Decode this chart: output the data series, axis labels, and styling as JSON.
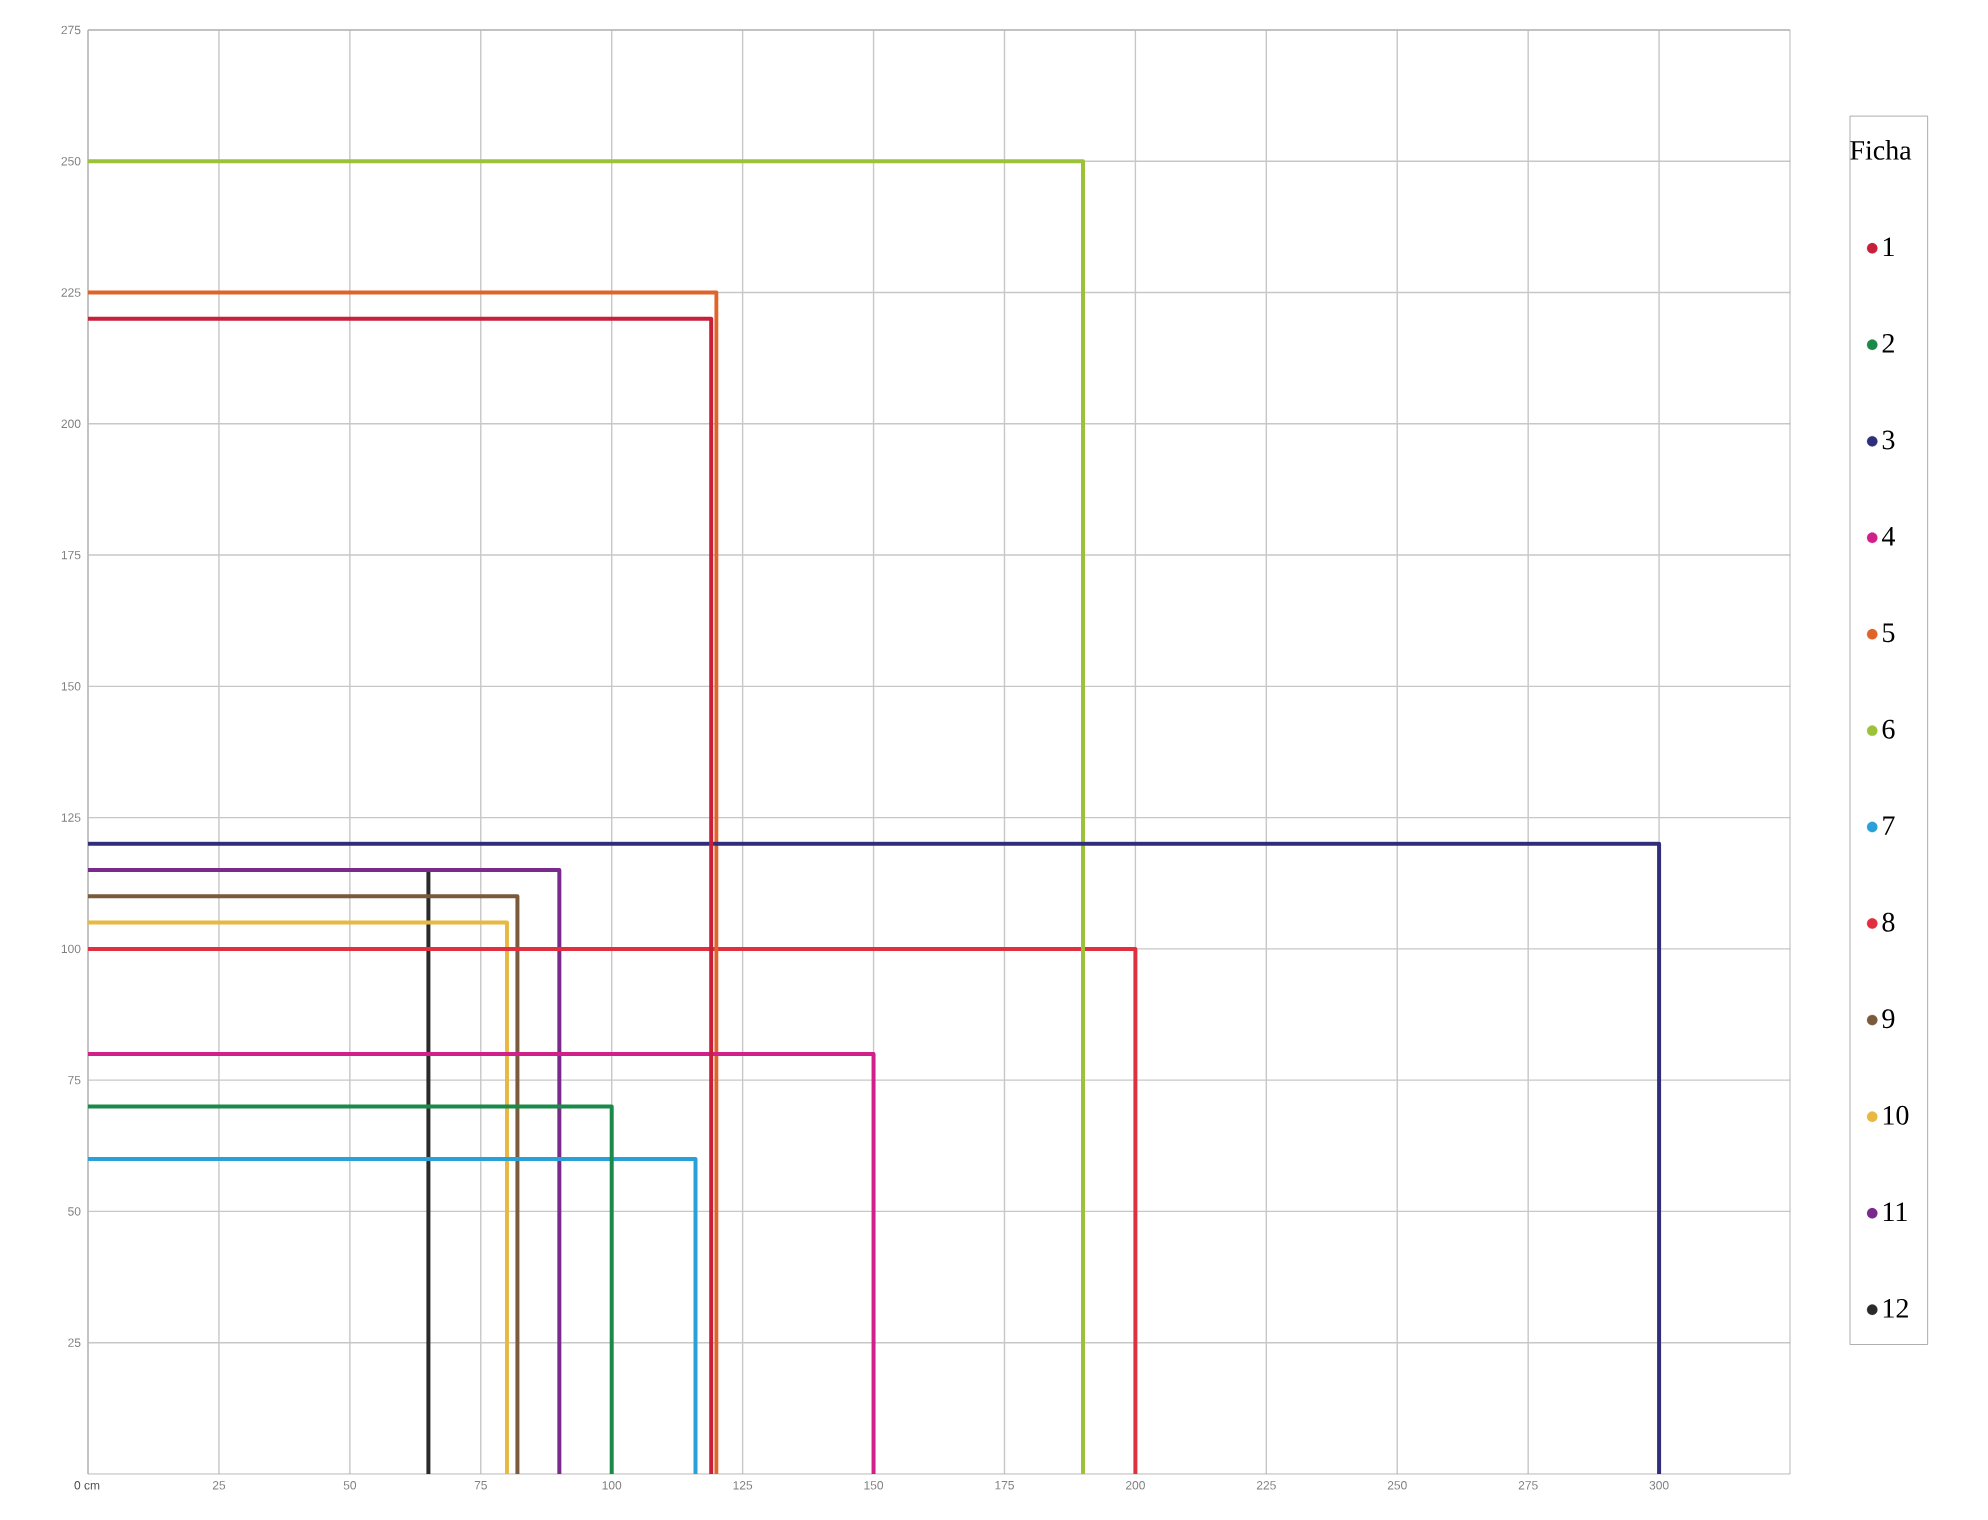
{
  "chart_data": {
    "type": "line",
    "legend_title": "Ficha",
    "xlim": [
      0,
      325
    ],
    "ylim": [
      0,
      275
    ],
    "xticks": [
      {
        "value": 0,
        "label": "0 cm"
      },
      25,
      50,
      75,
      100,
      125,
      150,
      175,
      200,
      225,
      250,
      275,
      300
    ],
    "yticks": [
      25,
      50,
      75,
      100,
      125,
      150,
      175,
      200,
      225,
      250,
      275
    ],
    "grid": true,
    "legend": "right",
    "series": [
      {
        "name": "1",
        "color": "#c8203a",
        "x": [
          0,
          119,
          119
        ],
        "values": [
          220,
          220,
          0
        ]
      },
      {
        "name": "2",
        "color": "#1a8a4a",
        "x": [
          0,
          100,
          100
        ],
        "values": [
          70,
          70,
          0
        ]
      },
      {
        "name": "3",
        "color": "#2e2e7a",
        "x": [
          0,
          300,
          300
        ],
        "values": [
          120,
          120,
          0
        ]
      },
      {
        "name": "4",
        "color": "#d0208a",
        "x": [
          0,
          150,
          150
        ],
        "values": [
          80,
          80,
          0
        ]
      },
      {
        "name": "5",
        "color": "#e0642a",
        "x": [
          0,
          120,
          120
        ],
        "values": [
          225,
          225,
          0
        ]
      },
      {
        "name": "6",
        "color": "#9cc23a",
        "x": [
          0,
          190,
          190
        ],
        "values": [
          250,
          250,
          0
        ]
      },
      {
        "name": "7",
        "color": "#2aa0d8",
        "x": [
          0,
          116,
          116
        ],
        "values": [
          60,
          60,
          0
        ]
      },
      {
        "name": "8",
        "color": "#e03040",
        "x": [
          0,
          200,
          200
        ],
        "values": [
          100,
          100,
          0
        ]
      },
      {
        "name": "9",
        "color": "#7a5a3a",
        "x": [
          0,
          82,
          82
        ],
        "values": [
          110,
          110,
          0
        ]
      },
      {
        "name": "10",
        "color": "#e8b840",
        "x": [
          0,
          80,
          80
        ],
        "values": [
          105,
          105,
          0
        ]
      },
      {
        "name": "11",
        "color": "#7a2a8a",
        "x": [
          0,
          90,
          90
        ],
        "values": [
          115,
          115,
          0
        ]
      },
      {
        "name": "12",
        "color": "#2a2a2a",
        "x": [
          0,
          65,
          65
        ],
        "values": [
          115,
          115,
          0
        ]
      }
    ]
  }
}
